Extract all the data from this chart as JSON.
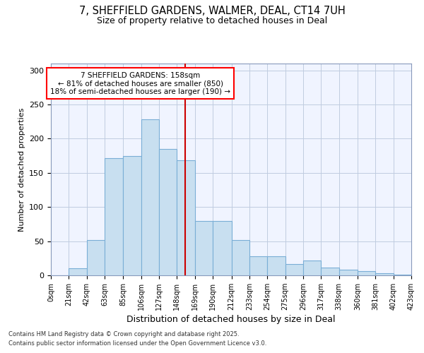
{
  "title_line1": "7, SHEFFIELD GARDENS, WALMER, DEAL, CT14 7UH",
  "title_line2": "Size of property relative to detached houses in Deal",
  "xlabel": "Distribution of detached houses by size in Deal",
  "ylabel": "Number of detached properties",
  "bar_color": "#c8dff0",
  "bar_edge_color": "#7aaed6",
  "background_color": "#ffffff",
  "plot_bg_color": "#f0f4ff",
  "grid_color": "#c0cce0",
  "vline_value": 158,
  "vline_color": "#cc0000",
  "annotation_title": "7 SHEFFIELD GARDENS: 158sqm",
  "annotation_line2": "← 81% of detached houses are smaller (850)",
  "annotation_line3": "18% of semi-detached houses are larger (190) →",
  "bin_edges": [
    0,
    21,
    42,
    63,
    85,
    106,
    127,
    148,
    169,
    190,
    212,
    233,
    254,
    275,
    296,
    317,
    338,
    360,
    381,
    402,
    423
  ],
  "bar_heights": [
    0,
    10,
    52,
    172,
    175,
    228,
    185,
    168,
    80,
    80,
    52,
    28,
    28,
    17,
    22,
    11,
    8,
    6,
    3,
    1
  ],
  "ylim": [
    0,
    310
  ],
  "yticks": [
    0,
    50,
    100,
    150,
    200,
    250,
    300
  ],
  "footnote_line1": "Contains HM Land Registry data © Crown copyright and database right 2025.",
  "footnote_line2": "Contains public sector information licensed under the Open Government Licence v3.0."
}
